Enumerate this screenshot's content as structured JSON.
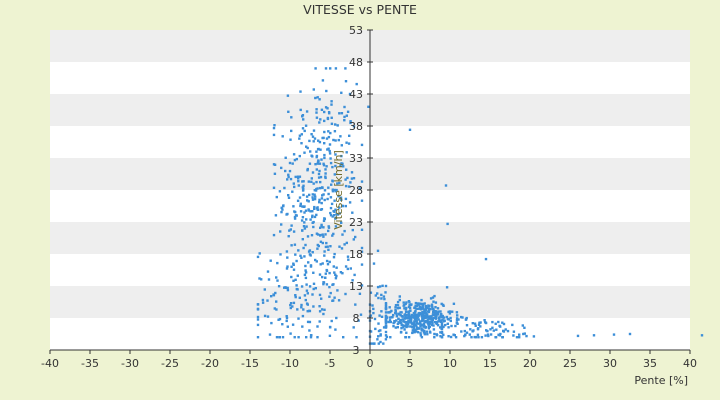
{
  "chart_data": {
    "type": "scatter",
    "title": "VITESSE vs PENTE",
    "xlabel": "Pente [%]",
    "ylabel": "Vitesse [km/h]",
    "xlim": [
      -40,
      40
    ],
    "ylim": [
      3,
      53
    ],
    "x_ticks": [
      "-40",
      "-35",
      "-30",
      "-25",
      "-20",
      "-15",
      "-10",
      "-5",
      "0",
      "5",
      "10",
      "15",
      "20",
      "25",
      "30",
      "35",
      "40"
    ],
    "y_ticks": [
      "3",
      "8",
      "13",
      "18",
      "23",
      "28",
      "33",
      "38",
      "43",
      "48",
      "53"
    ],
    "grid": "alternating horizontal bands",
    "colors": {
      "points": "#3c8fd8",
      "band": "#eeeeee",
      "plot_bg": "#ffffff",
      "background": "#eef3d2",
      "axis": "#333333"
    },
    "series": [
      {
        "clusters": [
          {
            "x_center": -6.5,
            "y_center": 28,
            "x_spread": 2.5,
            "y_spread": 8.5,
            "count": 420,
            "x_range": [
              -12,
              -1
            ],
            "y_range": [
              8,
              47
            ]
          },
          {
            "x_center": -8,
            "y_center": 11,
            "x_spread": 3.5,
            "y_spread": 4,
            "count": 160,
            "x_range": [
              -14,
              -1
            ],
            "y_range": [
              5,
              20
            ]
          },
          {
            "x_center": 6,
            "y_center": 8,
            "x_spread": 2.2,
            "y_spread": 1.4,
            "count": 430,
            "x_range": [
              2,
              12
            ],
            "y_range": [
              5,
              13
            ]
          },
          {
            "x_center": 14,
            "y_center": 6,
            "x_spread": 4,
            "y_spread": 1,
            "count": 90,
            "x_range": [
              9,
              24
            ],
            "y_range": [
              5,
              9
            ]
          },
          {
            "x_center": 1,
            "y_center": 8,
            "x_spread": 0.8,
            "y_spread": 3,
            "count": 45,
            "x_range": [
              0,
              3
            ],
            "y_range": [
              4,
              14
            ]
          }
        ],
        "outliers": [
          [
            5,
            37.4
          ],
          [
            9.5,
            28.7
          ],
          [
            9.7,
            22.7
          ],
          [
            14.5,
            17.2
          ],
          [
            26,
            5.2
          ],
          [
            28,
            5.3
          ],
          [
            30.5,
            5.4
          ],
          [
            32.5,
            5.5
          ],
          [
            41.5,
            5.3
          ],
          [
            -3,
            45
          ],
          [
            -2.5,
            43
          ],
          [
            -5.5,
            47
          ],
          [
            1,
            18.5
          ],
          [
            0.5,
            16.5
          ],
          [
            -0.2,
            41
          ],
          [
            2,
            13
          ]
        ]
      }
    ]
  }
}
